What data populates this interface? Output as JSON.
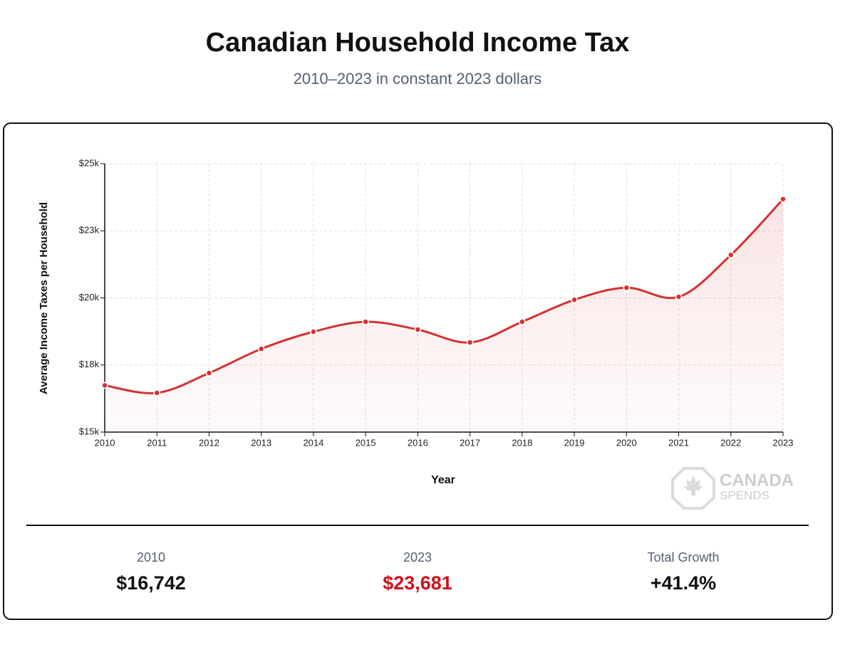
{
  "chart_data": {
    "type": "line",
    "title": "Canadian Household Income Tax",
    "subtitle": "2010–2023 in constant 2023 dollars",
    "xlabel": "Year",
    "ylabel": "Average Income Taxes per Household",
    "categories": [
      "2010",
      "2011",
      "2012",
      "2013",
      "2014",
      "2015",
      "2016",
      "2017",
      "2018",
      "2019",
      "2020",
      "2021",
      "2022",
      "2023"
    ],
    "series": [
      {
        "name": "Average Income Taxes per Household",
        "color": "#d63031",
        "values": [
          16742,
          16460,
          17200,
          18100,
          18740,
          19110,
          18820,
          18340,
          19110,
          19930,
          20380,
          20040,
          21600,
          23681
        ]
      }
    ],
    "ylim": [
      15000,
      25000
    ],
    "yticks": [
      {
        "value": 15000,
        "label": "$15k"
      },
      {
        "value": 17500,
        "label": "$18k"
      },
      {
        "value": 20000,
        "label": "$20k"
      },
      {
        "value": 22500,
        "label": "$23k"
      },
      {
        "value": 25000,
        "label": "$25k"
      }
    ],
    "grid": true,
    "watermark": [
      "CANADA",
      "SPENDS"
    ],
    "summary": [
      {
        "label": "2010",
        "value": "$16,742",
        "color": "#111111"
      },
      {
        "label": "2023",
        "value": "$23,681",
        "color": "#d0101b"
      },
      {
        "label": "Total Growth",
        "value": "+41.4%",
        "color": "#111111"
      }
    ]
  }
}
